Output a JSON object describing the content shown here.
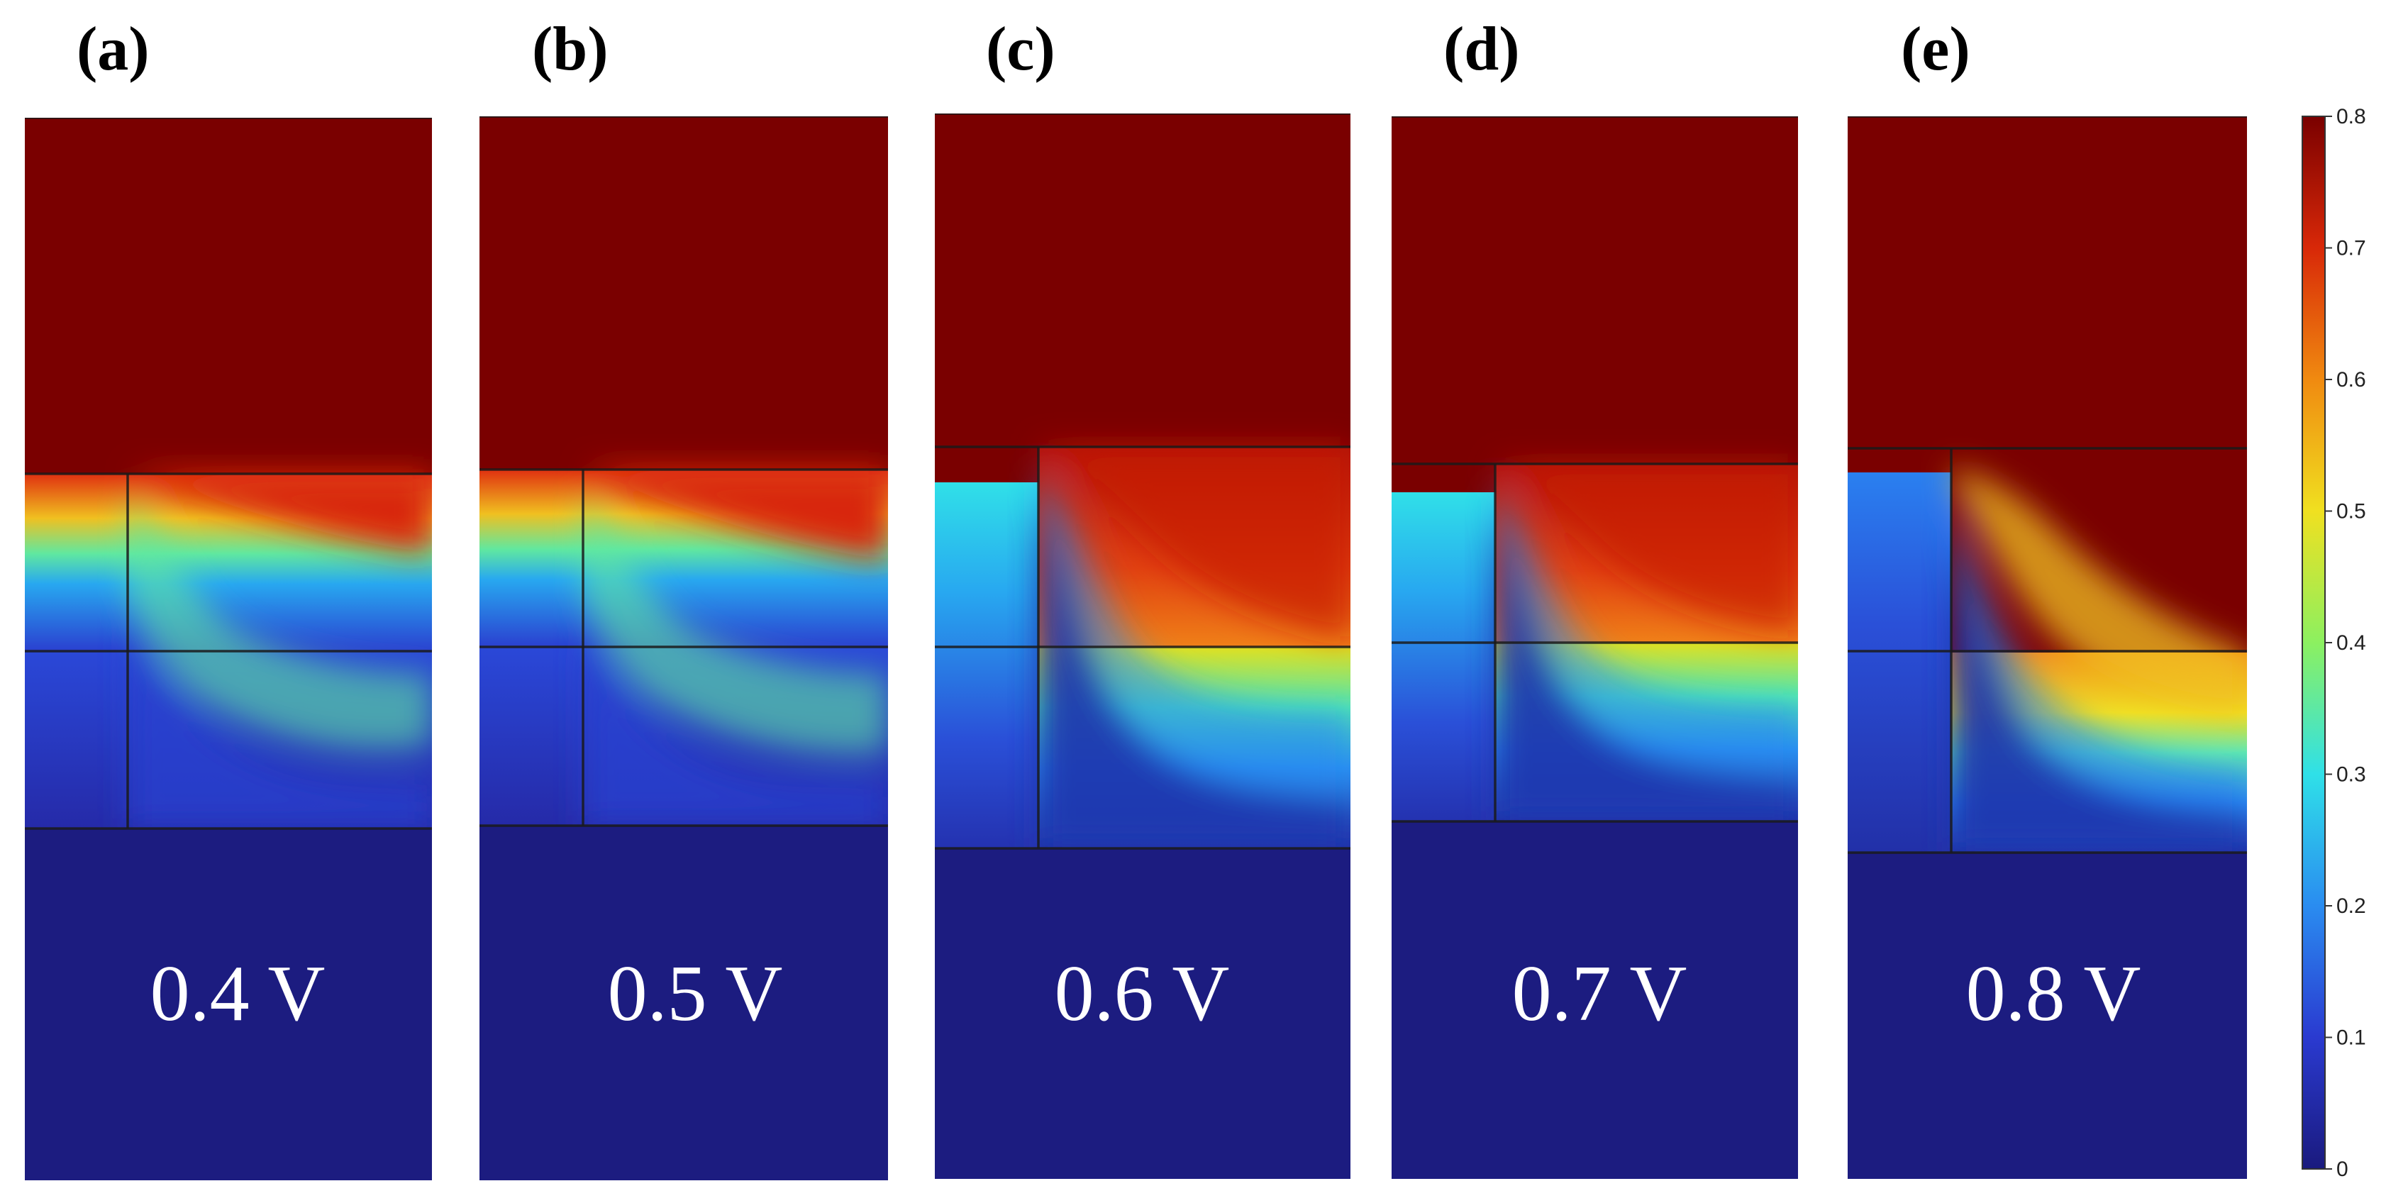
{
  "figure": {
    "panels": [
      {
        "label": "(a)",
        "voltage": "0.4 V",
        "value": 0.4
      },
      {
        "label": "(b)",
        "voltage": "0.5 V",
        "value": 0.5
      },
      {
        "label": "(c)",
        "voltage": "0.6 V",
        "value": 0.6
      },
      {
        "label": "(d)",
        "voltage": "0.7 V",
        "value": 0.7
      },
      {
        "label": "(e)",
        "voltage": "0.8 V",
        "value": 0.8
      }
    ],
    "colorbar": {
      "min": 0,
      "max": 0.8,
      "ticks": [
        "0",
        "0.1",
        "0.2",
        "0.3",
        "0.4",
        "0.5",
        "0.6",
        "0.7",
        "0.8"
      ],
      "colors": [
        "#1a1a7e",
        "#2a3ad0",
        "#2a8cf0",
        "#2fe0e8",
        "#8cf060",
        "#f0e020",
        "#f08a10",
        "#d82808",
        "#7a0000"
      ]
    }
  }
}
